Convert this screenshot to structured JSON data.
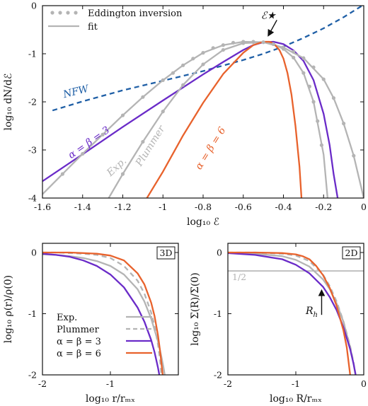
{
  "chart_data": [
    {
      "type": "line",
      "panel": "top",
      "xlabel": "log₁₀ ℰ",
      "ylabel": "log₁₀ dN/dℰ",
      "xlim": [
        -1.6,
        0
      ],
      "ylim": [
        -4,
        0
      ],
      "xticks": [
        -1.6,
        -1.4,
        -1.2,
        -1,
        -0.8,
        -0.6,
        -0.4,
        -0.2,
        0
      ],
      "xticklabels": [
        "-1.6",
        "-1.4",
        "-1.2",
        "-1",
        "-0.8",
        "-0.6",
        "-0.4",
        "-0.2",
        "0"
      ],
      "yticks": [
        -4,
        -3,
        -2,
        -1,
        0
      ],
      "yticklabels": [
        "-4",
        "-3",
        "-2",
        "-1",
        "0"
      ],
      "legend": {
        "position": "top-left",
        "entries": [
          {
            "label": "Eddington inversion",
            "style": "dots",
            "color": "#b4b4b4"
          },
          {
            "label": "fit",
            "style": "solid",
            "color": "#b4b4b4"
          }
        ]
      },
      "annotations": [
        {
          "text": "ℰ★",
          "x": -0.475,
          "y": -0.27,
          "arrow_to": [
            -0.475,
            -0.62
          ]
        },
        {
          "text": "NFW",
          "x": -1.43,
          "y": -1.85,
          "color": "#1f5fa6"
        },
        {
          "text": "α = β = 3",
          "x": -1.36,
          "y": -2.9,
          "color": "#6a2bc8"
        },
        {
          "text": "Exp.",
          "x": -1.22,
          "y": -3.4,
          "color": "#b4b4b4"
        },
        {
          "text": "Plummer",
          "x": -1.05,
          "y": -2.95,
          "color": "#b4b4b4"
        },
        {
          "text": "α = β = 6",
          "x": -0.75,
          "y": -3.0,
          "color": "#e8622c"
        }
      ],
      "series": [
        {
          "name": "NFW",
          "style": "dashed",
          "color": "#1f5fa6",
          "x": [
            -1.55,
            -1.4,
            -1.2,
            -1.0,
            -0.8,
            -0.6,
            -0.5,
            -0.4,
            -0.3,
            -0.2,
            -0.1,
            0
          ],
          "y": [
            -2.18,
            -1.99,
            -1.76,
            -1.56,
            -1.36,
            -1.13,
            -1.0,
            -0.85,
            -0.67,
            -0.47,
            -0.24,
            0.02
          ]
        },
        {
          "name": "α = β = 3",
          "style": "solid",
          "color": "#6a2bc8",
          "x": [
            -1.6,
            -1.4,
            -1.2,
            -1.0,
            -0.8,
            -0.7,
            -0.6,
            -0.55,
            -0.5,
            -0.45,
            -0.4,
            -0.35,
            -0.3,
            -0.25,
            -0.2,
            -0.17,
            -0.15,
            -0.13
          ],
          "y": [
            -3.65,
            -3.09,
            -2.52,
            -1.97,
            -1.43,
            -1.17,
            -0.92,
            -0.82,
            -0.76,
            -0.75,
            -0.8,
            -0.93,
            -1.15,
            -1.55,
            -2.25,
            -2.9,
            -3.5,
            -4.0
          ]
        },
        {
          "name": "Exp.",
          "style": "solid",
          "color": "#b4b4b4",
          "x": [
            -1.6,
            -1.5,
            -1.4,
            -1.3,
            -1.2,
            -1.1,
            -1.0,
            -0.9,
            -0.8,
            -0.7,
            -0.6,
            -0.5,
            -0.4,
            -0.3,
            -0.2,
            -0.15,
            -0.1,
            -0.05,
            0
          ],
          "y": [
            -3.92,
            -3.5,
            -3.08,
            -2.68,
            -2.28,
            -1.9,
            -1.55,
            -1.24,
            -0.98,
            -0.82,
            -0.75,
            -0.76,
            -0.87,
            -1.09,
            -1.53,
            -1.92,
            -2.45,
            -3.12,
            -4.0
          ]
        },
        {
          "name": "Plummer",
          "style": "solid",
          "color": "#b4b4b4",
          "x": [
            -1.27,
            -1.2,
            -1.1,
            -1.0,
            -0.9,
            -0.8,
            -0.7,
            -0.6,
            -0.5,
            -0.45,
            -0.4,
            -0.35,
            -0.3,
            -0.25,
            -0.2,
            -0.18
          ],
          "y": [
            -4.0,
            -3.5,
            -2.83,
            -2.2,
            -1.65,
            -1.22,
            -0.92,
            -0.78,
            -0.76,
            -0.8,
            -0.9,
            -1.08,
            -1.4,
            -2.0,
            -3.1,
            -4.0
          ]
        },
        {
          "name": "α = β = 6",
          "style": "solid",
          "color": "#e8622c",
          "x": [
            -1.08,
            -1.0,
            -0.9,
            -0.8,
            -0.7,
            -0.6,
            -0.55,
            -0.5,
            -0.47,
            -0.45,
            -0.42,
            -0.4,
            -0.38,
            -0.36,
            -0.34,
            -0.32,
            -0.31
          ],
          "y": [
            -4.0,
            -3.45,
            -2.7,
            -2.02,
            -1.42,
            -0.98,
            -0.82,
            -0.75,
            -0.75,
            -0.78,
            -0.92,
            -1.1,
            -1.4,
            -1.85,
            -2.5,
            -3.35,
            -4.0
          ]
        },
        {
          "name": "Eddington inversion (Exp.)",
          "style": "dots",
          "color": "#b4b4b4",
          "x": [
            -1.5,
            -1.4,
            -1.3,
            -1.2,
            -1.1,
            -1.0,
            -0.95,
            -0.9,
            -0.85,
            -0.8,
            -0.75,
            -0.7,
            -0.65,
            -0.6,
            -0.55,
            -0.5,
            -0.45,
            -0.4,
            -0.35,
            -0.3,
            -0.25,
            -0.2,
            -0.15,
            -0.1,
            -0.05
          ],
          "y": [
            -3.5,
            -3.08,
            -2.68,
            -2.28,
            -1.9,
            -1.55,
            -1.4,
            -1.24,
            -1.1,
            -0.98,
            -0.88,
            -0.82,
            -0.77,
            -0.75,
            -0.75,
            -0.76,
            -0.8,
            -0.87,
            -0.96,
            -1.09,
            -1.28,
            -1.53,
            -1.92,
            -2.45,
            -3.12
          ]
        },
        {
          "name": "Eddington inversion (Plummer)",
          "style": "dots",
          "color": "#b4b4b4",
          "x": [
            -1.2,
            -1.1,
            -1.0,
            -0.9,
            -0.8,
            -0.7,
            -0.6,
            -0.55,
            -0.5,
            -0.45,
            -0.4,
            -0.35,
            -0.3,
            -0.27,
            -0.25,
            -0.23,
            -0.21
          ],
          "y": [
            -3.5,
            -2.83,
            -2.2,
            -1.65,
            -1.22,
            -0.92,
            -0.78,
            -0.76,
            -0.76,
            -0.8,
            -0.9,
            -1.08,
            -1.4,
            -1.68,
            -2.0,
            -2.4,
            -2.9
          ]
        }
      ]
    },
    {
      "type": "line",
      "panel": "bottom-left",
      "xlabel": "log₁₀ r/rₘₓ",
      "ylabel": "log₁₀ ρ(r)/ρ(0)",
      "xlim": [
        -2,
        0
      ],
      "ylim": [
        -2,
        0.15
      ],
      "xticks": [
        -2,
        -1
      ],
      "xticklabels": [
        "-2",
        "-1"
      ],
      "yticks": [
        -2,
        -1,
        0
      ],
      "yticklabels": [
        "-2",
        "-1",
        "0"
      ],
      "tag": "3D",
      "legend": {
        "position": "bottom-left",
        "entries": [
          {
            "label": "Exp.",
            "style": "solid",
            "color": "#b4b4b4"
          },
          {
            "label": "Plummer",
            "style": "dashed",
            "color": "#b4b4b4"
          },
          {
            "label": "α = β = 3",
            "style": "solid",
            "color": "#6a2bc8"
          },
          {
            "label": "α = β = 6",
            "style": "solid",
            "color": "#e8622c"
          }
        ]
      },
      "series": [
        {
          "name": "Exp.",
          "style": "solid",
          "color": "#b4b4b4",
          "x": [
            -2,
            -1.8,
            -1.6,
            -1.4,
            -1.2,
            -1.0,
            -0.8,
            -0.6,
            -0.5,
            -0.4,
            -0.3,
            -0.25,
            -0.22,
            -0.2
          ],
          "y": [
            -0.03,
            -0.04,
            -0.06,
            -0.09,
            -0.14,
            -0.22,
            -0.36,
            -0.6,
            -0.8,
            -1.08,
            -1.45,
            -1.7,
            -1.87,
            -2.0
          ]
        },
        {
          "name": "Plummer",
          "style": "dashed",
          "color": "#b4b4b4",
          "x": [
            -2,
            -1.8,
            -1.6,
            -1.4,
            -1.2,
            -1.0,
            -0.8,
            -0.6,
            -0.5,
            -0.4,
            -0.35,
            -0.3,
            -0.27,
            -0.25
          ],
          "y": [
            0.0,
            0.0,
            -0.01,
            -0.02,
            -0.04,
            -0.09,
            -0.22,
            -0.46,
            -0.67,
            -0.98,
            -1.2,
            -1.5,
            -1.75,
            -2.0
          ]
        },
        {
          "name": "α = β = 3",
          "style": "solid",
          "color": "#6a2bc8",
          "x": [
            -2,
            -1.8,
            -1.6,
            -1.4,
            -1.2,
            -1.0,
            -0.8,
            -0.6,
            -0.5,
            -0.4,
            -0.35,
            -0.3,
            -0.28
          ],
          "y": [
            -0.02,
            -0.04,
            -0.07,
            -0.13,
            -0.22,
            -0.36,
            -0.57,
            -0.9,
            -1.13,
            -1.43,
            -1.63,
            -1.88,
            -2.0
          ]
        },
        {
          "name": "α = β = 6",
          "style": "solid",
          "color": "#e8622c",
          "x": [
            -2,
            -1.8,
            -1.6,
            -1.4,
            -1.2,
            -1.0,
            -0.8,
            -0.6,
            -0.5,
            -0.4,
            -0.35,
            -0.3,
            -0.27,
            -0.25,
            -0.23
          ],
          "y": [
            0.0,
            0.0,
            0.0,
            -0.01,
            -0.02,
            -0.05,
            -0.13,
            -0.34,
            -0.52,
            -0.82,
            -1.04,
            -1.35,
            -1.6,
            -1.8,
            -2.0
          ]
        }
      ]
    },
    {
      "type": "line",
      "panel": "bottom-right",
      "xlabel": "log₁₀ R/rₘₓ",
      "ylabel": "log₁₀ Σ(R)/Σ(0)",
      "xlim": [
        -2,
        0
      ],
      "ylim": [
        -2,
        0.15
      ],
      "xticks": [
        -2,
        -1,
        0
      ],
      "xticklabels": [
        "-2",
        "-1",
        "0"
      ],
      "yticks": [
        -2,
        -1,
        0
      ],
      "yticklabels": [
        "-2",
        "-1",
        "0"
      ],
      "tag": "2D",
      "hline": {
        "y": -0.301,
        "label": "1/2",
        "color": "#b4b4b4"
      },
      "annotations": [
        {
          "text": "R_h",
          "x": -0.62,
          "y": -0.95,
          "arrow_to": [
            -0.62,
            -0.6
          ]
        }
      ],
      "series": [
        {
          "name": "Exp.",
          "style": "solid",
          "color": "#b4b4b4",
          "x": [
            -2,
            -1.6,
            -1.2,
            -1.0,
            -0.8,
            -0.6,
            -0.5,
            -0.4,
            -0.3,
            -0.2,
            -0.15,
            -0.12
          ],
          "y": [
            -0.01,
            -0.02,
            -0.06,
            -0.12,
            -0.23,
            -0.44,
            -0.6,
            -0.83,
            -1.13,
            -1.55,
            -1.82,
            -2.0
          ]
        },
        {
          "name": "Plummer",
          "style": "dashed",
          "color": "#b4b4b4",
          "x": [
            -2,
            -1.6,
            -1.2,
            -1.0,
            -0.8,
            -0.6,
            -0.5,
            -0.4,
            -0.3,
            -0.2,
            -0.15,
            -0.12
          ],
          "y": [
            0.0,
            0.0,
            -0.02,
            -0.05,
            -0.14,
            -0.36,
            -0.55,
            -0.8,
            -1.12,
            -1.53,
            -1.8,
            -2.0
          ]
        },
        {
          "name": "α = β = 3",
          "style": "solid",
          "color": "#6a2bc8",
          "x": [
            -2,
            -1.6,
            -1.2,
            -1.0,
            -0.8,
            -0.6,
            -0.5,
            -0.4,
            -0.3,
            -0.2,
            -0.15,
            -0.12
          ],
          "y": [
            -0.01,
            -0.04,
            -0.11,
            -0.2,
            -0.34,
            -0.56,
            -0.73,
            -0.94,
            -1.22,
            -1.58,
            -1.82,
            -2.0
          ]
        },
        {
          "name": "α = β = 6",
          "style": "solid",
          "color": "#e8622c",
          "x": [
            -2,
            -1.6,
            -1.2,
            -1.0,
            -0.9,
            -0.8,
            -0.7,
            -0.6,
            -0.5,
            -0.4,
            -0.3,
            -0.25,
            -0.2
          ],
          "y": [
            0.0,
            0.0,
            -0.01,
            -0.03,
            -0.06,
            -0.11,
            -0.22,
            -0.37,
            -0.58,
            -0.87,
            -1.27,
            -1.55,
            -2.0
          ]
        }
      ]
    }
  ]
}
